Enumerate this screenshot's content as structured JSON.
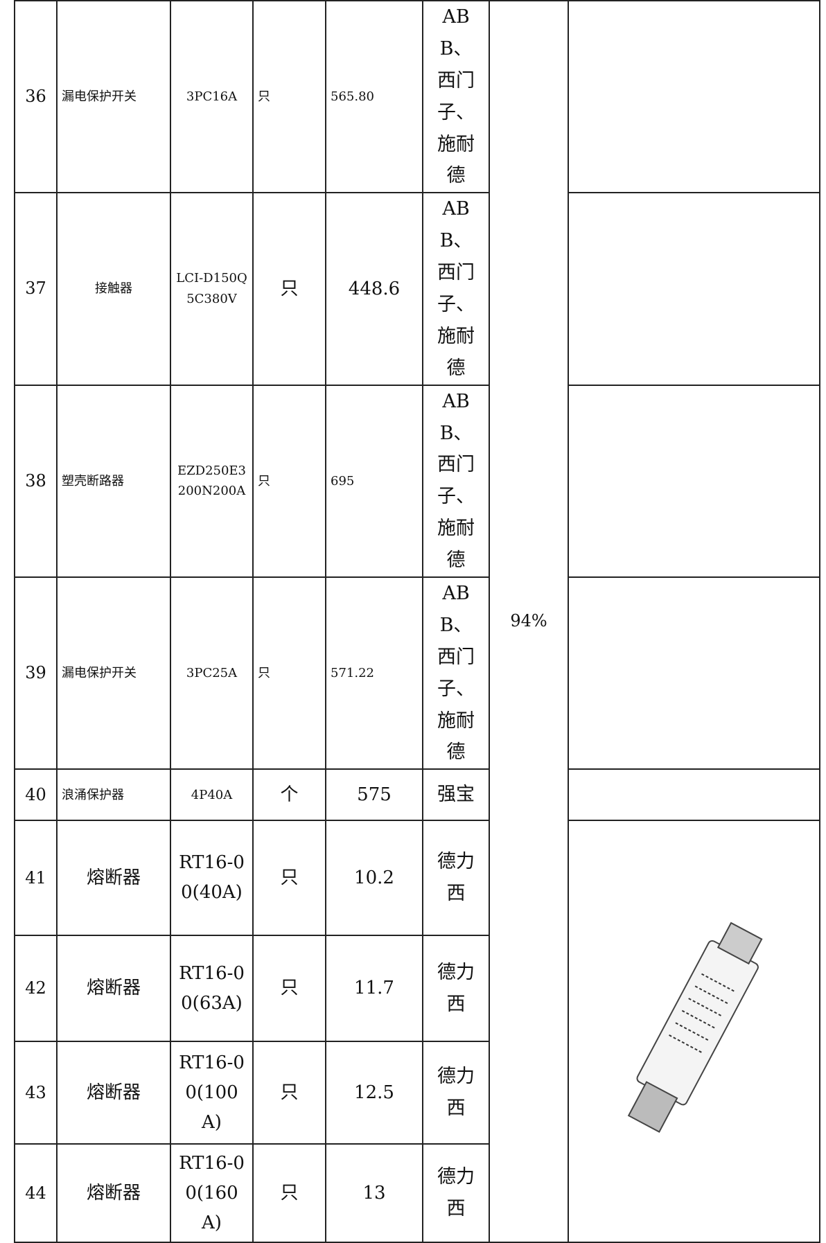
{
  "table": {
    "rows": [
      [
        "36",
        "漏电保护开关",
        "3PC16A",
        "只",
        "565.80",
        "ABB、西门子、施耐德"
      ],
      [
        "37",
        "接触器",
        "LCI-D150Q5C380V",
        "只",
        "448.6",
        "ABB、西门子、施耐德"
      ],
      [
        "38",
        "塑壳断路器",
        "EZD250E3200N200A",
        "只",
        "695",
        "ABB、西门子、施耐德"
      ],
      [
        "39",
        "漏电保护开关",
        "3PC25A",
        "只",
        "571.22",
        "ABB、西门子、施耐德"
      ],
      [
        "40",
        "浪涌保护器",
        "4P40A",
        "个",
        "575",
        "强宝"
      ],
      [
        "41",
        "熔断器",
        "RT16-00(40A)",
        "只",
        "10.2",
        "德力西"
      ],
      [
        "42",
        "熔断器",
        "RT16-00(63A)",
        "只",
        "11.7",
        "德力西"
      ],
      [
        "43",
        "熔断器",
        "RT16-00(100A)",
        "只",
        "12.5",
        "德力西"
      ],
      [
        "44",
        "熔断器",
        "RT16-00(160A)",
        "只",
        "13",
        "德力西"
      ]
    ],
    "discount": "94%"
  }
}
